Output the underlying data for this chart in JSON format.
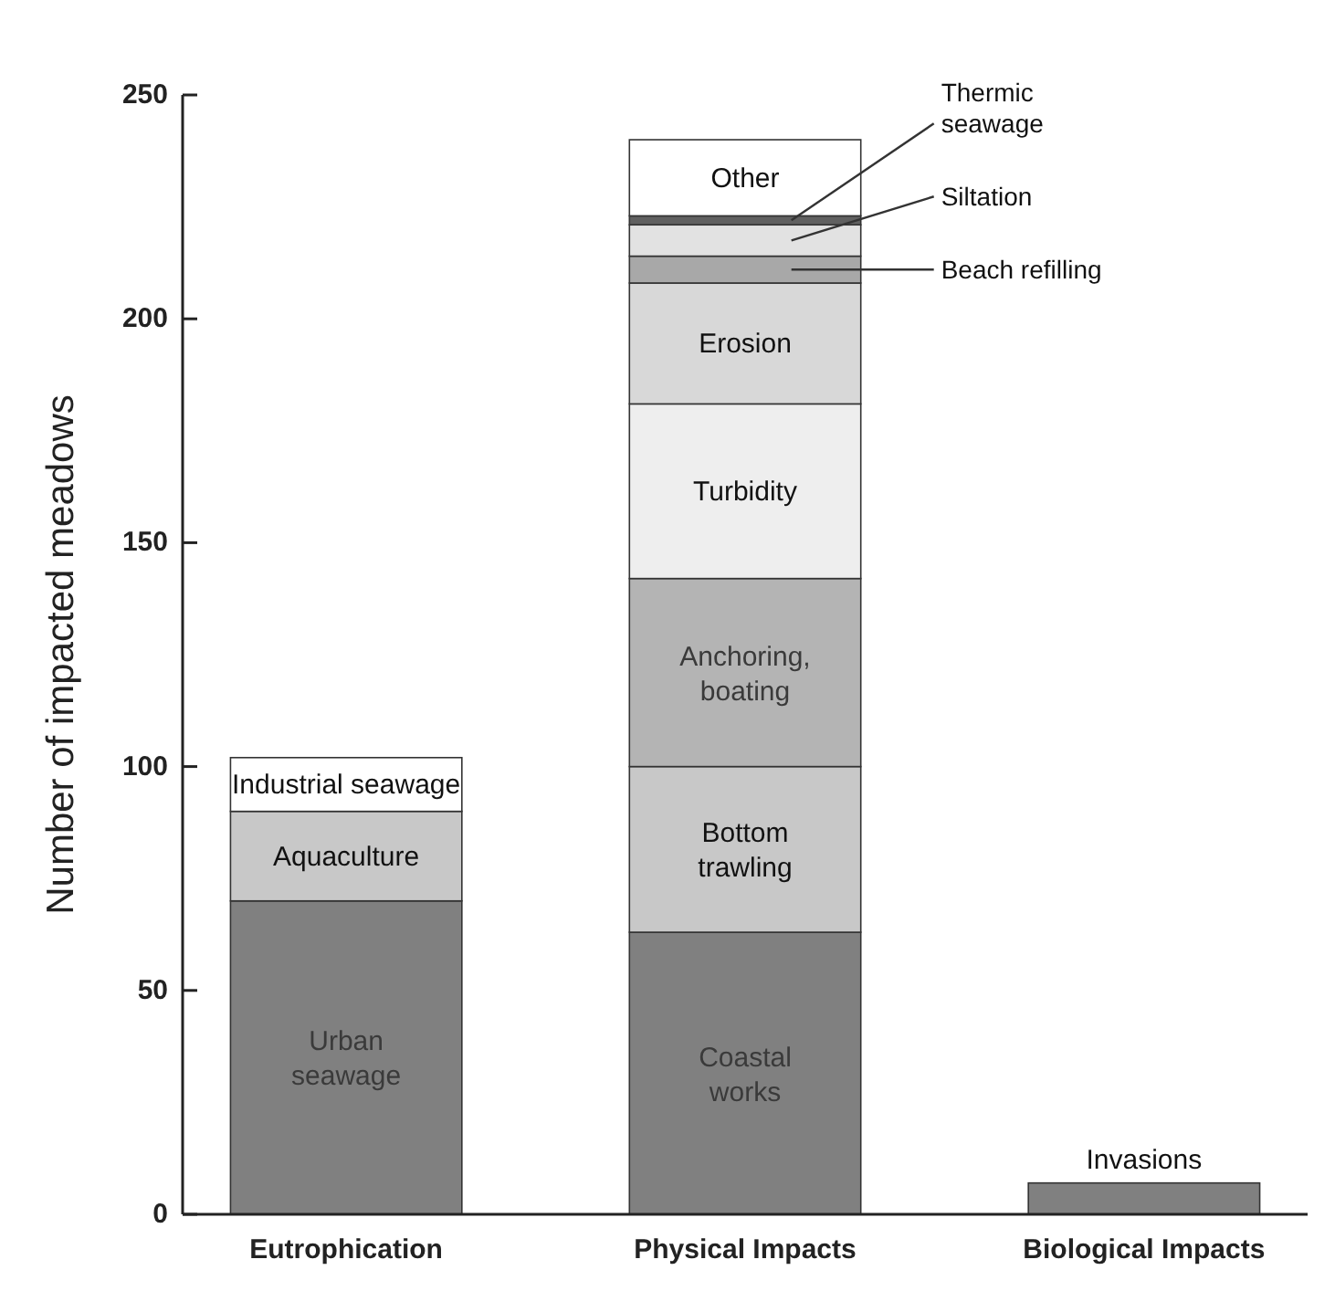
{
  "chart_data": {
    "type": "bar",
    "stacked": true,
    "ylabel": "Number of impacted meadows",
    "categories": [
      "Eutrophication",
      "Physical Impacts",
      "Biological Impacts"
    ],
    "series": [
      {
        "name": "Urban seawage",
        "color": "#808080",
        "values": [
          70,
          0,
          0
        ]
      },
      {
        "name": "Aquaculture",
        "color": "#c8c8c8",
        "values": [
          20,
          0,
          0
        ]
      },
      {
        "name": "Industrial seawage",
        "color": "#ffffff",
        "values": [
          12,
          0,
          0
        ]
      },
      {
        "name": "Coastal works",
        "color": "#808080",
        "values": [
          0,
          63,
          0
        ]
      },
      {
        "name": "Bottom trawling",
        "color": "#c8c8c8",
        "values": [
          0,
          37,
          0
        ]
      },
      {
        "name": "Anchoring, boating",
        "color": "#b4b4b4",
        "values": [
          0,
          42,
          0
        ]
      },
      {
        "name": "Turbidity",
        "color": "#eeeeee",
        "values": [
          0,
          39,
          0
        ]
      },
      {
        "name": "Erosion",
        "color": "#d8d8d8",
        "values": [
          0,
          27,
          0
        ]
      },
      {
        "name": "Beach refilling",
        "color": "#a8a8a8",
        "values": [
          0,
          6,
          0
        ]
      },
      {
        "name": "Siltation",
        "color": "#e2e2e2",
        "values": [
          0,
          7,
          0
        ]
      },
      {
        "name": "Thermic seawage",
        "color": "#606060",
        "values": [
          0,
          2,
          0
        ]
      },
      {
        "name": "Other",
        "color": "#ffffff",
        "values": [
          0,
          17,
          0
        ]
      },
      {
        "name": "Invasions",
        "color": "#808080",
        "values": [
          0,
          0,
          7
        ]
      }
    ],
    "ylim": [
      0,
      250
    ],
    "yticks": [
      0,
      50,
      100,
      150,
      200,
      250
    ],
    "grid": false
  }
}
